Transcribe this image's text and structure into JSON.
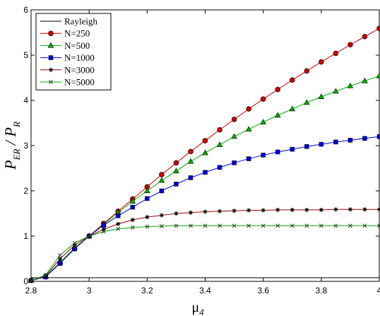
{
  "chart_data": {
    "type": "line",
    "xlabel": "μ",
    "xlabel_sub": "4",
    "ylabel": "P",
    "ylabel_sub1": "ER",
    "ylabel_mid": " / P",
    "ylabel_sub2": "R",
    "xlim": [
      2.8,
      4.0
    ],
    "ylim": [
      0,
      6
    ],
    "grid": false,
    "legend_position": "top-left",
    "x_ticks": [
      "2.8",
      "3",
      "3.2",
      "3.4",
      "3.6",
      "3.8",
      "4"
    ],
    "y_ticks": [
      "0",
      "1",
      "2",
      "3",
      "4",
      "5",
      "6"
    ],
    "x_tick_values": [
      2.8,
      3.0,
      3.2,
      3.4,
      3.6,
      3.8,
      4.0
    ],
    "y_tick_values": [
      0,
      1,
      2,
      3,
      4,
      5,
      6
    ],
    "x": [
      2.8,
      2.85,
      2.9,
      2.95,
      3.0,
      3.05,
      3.1,
      3.15,
      3.2,
      3.25,
      3.3,
      3.35,
      3.4,
      3.45,
      3.5,
      3.55,
      3.6,
      3.65,
      3.7,
      3.75,
      3.8,
      3.85,
      3.9,
      3.95,
      4.0
    ],
    "series": [
      {
        "name": "Rayleigh",
        "color": "#000000",
        "marker": "none",
        "values": [
          0.08,
          0.08,
          0.08,
          0.08,
          0.08,
          0.08,
          0.08,
          0.08,
          0.08,
          0.08,
          0.08,
          0.08,
          0.08,
          0.08,
          0.08,
          0.08,
          0.08,
          0.08,
          0.08,
          0.08,
          0.08,
          0.08,
          0.08,
          0.08,
          0.08
        ]
      },
      {
        "name": "N=250",
        "color": "#cc0000",
        "marker": "circle",
        "values": [
          0.02,
          0.1,
          0.4,
          0.72,
          1.0,
          1.28,
          1.55,
          1.82,
          2.09,
          2.36,
          2.62,
          2.87,
          3.11,
          3.35,
          3.58,
          3.81,
          4.03,
          4.24,
          4.45,
          4.65,
          4.85,
          5.04,
          5.23,
          5.41,
          5.59
        ]
      },
      {
        "name": "N=500",
        "color": "#00aa00",
        "marker": "triangle",
        "values": [
          0.02,
          0.11,
          0.42,
          0.74,
          1.0,
          1.26,
          1.52,
          1.77,
          2.0,
          2.23,
          2.44,
          2.65,
          2.84,
          3.02,
          3.2,
          3.36,
          3.52,
          3.67,
          3.81,
          3.95,
          4.08,
          4.2,
          4.32,
          4.43,
          4.54
        ]
      },
      {
        "name": "N=1000",
        "color": "#0000cc",
        "marker": "square",
        "values": [
          0.02,
          0.1,
          0.4,
          0.72,
          1.0,
          1.24,
          1.45,
          1.64,
          1.83,
          2.0,
          2.15,
          2.29,
          2.41,
          2.52,
          2.62,
          2.71,
          2.79,
          2.86,
          2.92,
          2.98,
          3.03,
          3.08,
          3.12,
          3.16,
          3.2
        ]
      },
      {
        "name": "N=3000",
        "color": "#990000",
        "marker": "star",
        "values": [
          0.02,
          0.12,
          0.5,
          0.8,
          1.0,
          1.15,
          1.27,
          1.36,
          1.42,
          1.46,
          1.5,
          1.52,
          1.54,
          1.55,
          1.56,
          1.57,
          1.57,
          1.58,
          1.58,
          1.58,
          1.58,
          1.59,
          1.59,
          1.59,
          1.59
        ]
      },
      {
        "name": "N=5000",
        "color": "#00aa00",
        "marker": "x",
        "values": [
          0.02,
          0.14,
          0.58,
          0.85,
          1.0,
          1.1,
          1.16,
          1.19,
          1.21,
          1.22,
          1.23,
          1.23,
          1.23,
          1.23,
          1.23,
          1.23,
          1.23,
          1.23,
          1.23,
          1.23,
          1.23,
          1.23,
          1.23,
          1.23,
          1.23
        ]
      }
    ]
  }
}
